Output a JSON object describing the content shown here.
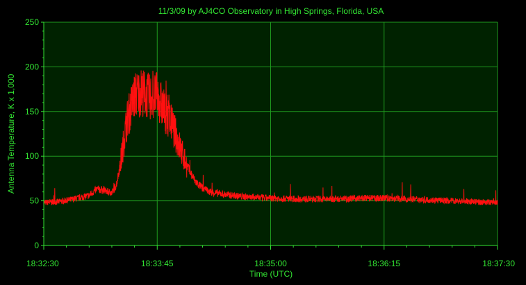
{
  "chart_data": {
    "type": "line",
    "title": "11/3/09  by  AJ4CO Observatory  in  High Springs, Florida, USA",
    "xlabel": "Time (UTC)",
    "ylabel": "Antenna Temperature, K x 1,000",
    "x_tick_labels": [
      "18:32:30",
      "18:33:45",
      "18:35:00",
      "18:36:15",
      "18:37:30"
    ],
    "y_tick_labels": [
      "0",
      "50",
      "100",
      "150",
      "200",
      "250"
    ],
    "x_range": [
      "18:32:30",
      "18:37:30"
    ],
    "ylim": [
      0,
      250
    ],
    "grid": true,
    "colors": {
      "background": "#000000",
      "plot_area": "#002200",
      "grid": "#1f9a1f",
      "axis": "#33e633",
      "text": "#33e633",
      "series": "#ff1010"
    },
    "series": [
      {
        "x": [
          "18:32:30",
          "18:32:40",
          "18:32:50",
          "18:33:00",
          "18:33:05",
          "18:33:10",
          "18:33:15",
          "18:33:18",
          "18:33:21",
          "18:33:25",
          "18:33:30",
          "18:33:35",
          "18:33:40",
          "18:33:45",
          "18:33:50",
          "18:33:55",
          "18:34:00",
          "18:34:05",
          "18:34:10",
          "18:34:15",
          "18:34:20",
          "18:34:30",
          "18:34:40",
          "18:35:00",
          "18:35:20",
          "18:35:40",
          "18:36:00",
          "18:36:15",
          "18:36:30",
          "18:36:45",
          "18:37:00",
          "18:37:15",
          "18:37:30"
        ],
        "values": [
          48,
          49,
          52,
          56,
          63,
          62,
          58,
          68,
          95,
          140,
          168,
          172,
          166,
          168,
          150,
          135,
          110,
          88,
          72,
          64,
          60,
          57,
          55,
          53,
          52,
          52,
          53,
          53,
          52,
          51,
          50,
          49,
          48
        ]
      }
    ]
  }
}
